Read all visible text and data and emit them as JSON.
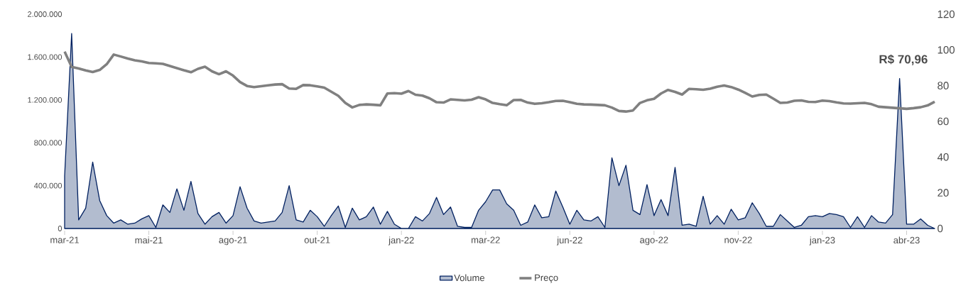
{
  "chart_data": {
    "type": "area",
    "categories": [
      "mar-21",
      null,
      null,
      null,
      null,
      null,
      null,
      null,
      null,
      null,
      null,
      null,
      "mai-21",
      null,
      null,
      null,
      null,
      null,
      null,
      null,
      null,
      null,
      null,
      null,
      "ago-21",
      null,
      null,
      null,
      null,
      null,
      null,
      null,
      null,
      null,
      null,
      null,
      "out-21",
      null,
      null,
      null,
      null,
      null,
      null,
      null,
      null,
      null,
      null,
      null,
      "jan-22",
      null,
      null,
      null,
      null,
      null,
      null,
      null,
      null,
      null,
      null,
      null,
      "mar-22",
      null,
      null,
      null,
      null,
      null,
      null,
      null,
      null,
      null,
      null,
      null,
      "jun-22",
      null,
      null,
      null,
      null,
      null,
      null,
      null,
      null,
      null,
      null,
      null,
      "ago-22",
      null,
      null,
      null,
      null,
      null,
      null,
      null,
      null,
      null,
      null,
      null,
      "nov-22",
      null,
      null,
      null,
      null,
      null,
      null,
      null,
      null,
      null,
      null,
      null,
      "jan-23",
      null,
      null,
      null,
      null,
      null,
      null,
      null,
      null,
      null,
      null,
      null,
      "abr-23",
      null,
      null,
      null,
      null
    ],
    "ylim": [
      0,
      2000000
    ],
    "yticks": [
      {
        "value": 0,
        "label": "0"
      },
      {
        "value": 400000,
        "label": "400.000"
      },
      {
        "value": 800000,
        "label": "800.000"
      },
      {
        "value": 1200000,
        "label": "1.200.000"
      },
      {
        "value": 1600000,
        "label": "1.600.000"
      },
      {
        "value": 2000000,
        "label": "2.000.000"
      }
    ],
    "y2lim": [
      0,
      120
    ],
    "y2ticks": [
      0,
      20,
      40,
      60,
      80,
      100,
      120
    ],
    "legend": "bottom",
    "annotations": [
      "R$ 70,96"
    ],
    "series": [
      {
        "name": "Volume",
        "color": "#002060",
        "values": [
          490000,
          1820000,
          80000,
          190000,
          620000,
          260000,
          120000,
          50000,
          80000,
          40000,
          50000,
          90000,
          120000,
          10000,
          220000,
          150000,
          370000,
          170000,
          440000,
          140000,
          40000,
          110000,
          150000,
          50000,
          120000,
          390000,
          190000,
          70000,
          50000,
          60000,
          70000,
          150000,
          400000,
          80000,
          60000,
          170000,
          110000,
          20000,
          120000,
          210000,
          10000,
          190000,
          80000,
          110000,
          200000,
          40000,
          160000,
          40000,
          0,
          0,
          110000,
          70000,
          140000,
          290000,
          130000,
          200000,
          20000,
          10000,
          10000,
          170000,
          250000,
          360000,
          360000,
          230000,
          170000,
          30000,
          60000,
          220000,
          100000,
          110000,
          350000,
          200000,
          40000,
          170000,
          80000,
          70000,
          110000,
          10000,
          660000,
          400000,
          590000,
          170000,
          130000,
          410000,
          120000,
          270000,
          120000,
          570000,
          30000,
          40000,
          20000,
          300000,
          40000,
          120000,
          40000,
          180000,
          80000,
          100000,
          240000,
          140000,
          20000,
          20000,
          130000,
          70000,
          10000,
          30000,
          110000,
          120000,
          110000,
          140000,
          130000,
          110000,
          10000,
          110000,
          10000,
          120000,
          60000,
          50000,
          130000,
          1400000,
          40000,
          40000,
          90000,
          30000,
          0
        ]
      },
      {
        "name": "Preço",
        "type": "line",
        "axis": "y2",
        "color": "#808080",
        "values": [
          99,
          90.5,
          89.6,
          88.5,
          87.6,
          88.8,
          92,
          97.4,
          96.3,
          95.2,
          94.2,
          93.6,
          92.7,
          92.5,
          92.2,
          91,
          89.8,
          88.6,
          87.5,
          89.4,
          90.6,
          88,
          86.4,
          88,
          85.6,
          82,
          79.8,
          79.2,
          79.7,
          80.2,
          80.6,
          80.8,
          78.4,
          78.2,
          80.3,
          80.2,
          79.6,
          78.9,
          76.6,
          74.3,
          70.3,
          67.8,
          69.2,
          69.5,
          69.3,
          69,
          75.6,
          75.8,
          75.5,
          77,
          74.9,
          74.4,
          72.9,
          70.7,
          70.5,
          72.3,
          72,
          71.7,
          72.1,
          73.5,
          72.3,
          70.3,
          69.6,
          69,
          71.9,
          72,
          70.5,
          69.8,
          70.1,
          70.7,
          71.4,
          71.5,
          70.7,
          69.8,
          69.5,
          69.4,
          69.2,
          69,
          67.7,
          65.8,
          65.5,
          66.1,
          70.3,
          71.8,
          72.6,
          75.6,
          77.6,
          76.5,
          75,
          78.2,
          78,
          77.7,
          78.3,
          79.4,
          80.1,
          79.2,
          77.8,
          75.9,
          73.9,
          74.8,
          75,
          72.7,
          70.3,
          70.5,
          71.5,
          71.7,
          70.9,
          70.8,
          71.6,
          71.3,
          70.6,
          70,
          69.9,
          70.1,
          70.3,
          69.6,
          68.2,
          67.9,
          67.6,
          67.3,
          67,
          67.4,
          67.9,
          68.9,
          71
        ]
      }
    ]
  }
}
